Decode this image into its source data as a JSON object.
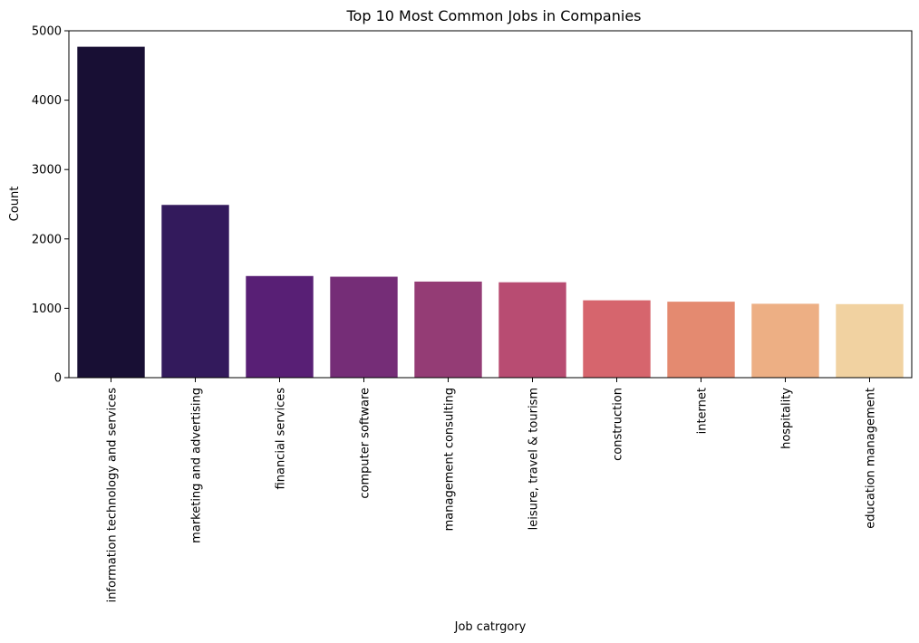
{
  "chart_data": {
    "type": "bar",
    "title": "Top 10 Most Common Jobs in Companies",
    "xlabel": "Job catrgory",
    "ylabel": "Count",
    "ylim": [
      0,
      5000
    ],
    "yticks": [
      0,
      1000,
      2000,
      3000,
      4000,
      5000
    ],
    "grid": false,
    "legend": "none",
    "categories": [
      "information technology and services",
      "marketing and advertising",
      "financial services",
      "computer software",
      "management consulting",
      "leisure, travel & tourism",
      "construction",
      "internet",
      "hospitality",
      "education management"
    ],
    "values": [
      4770,
      2490,
      1465,
      1455,
      1385,
      1375,
      1115,
      1095,
      1065,
      1060
    ],
    "colors": [
      "#180f34",
      "#331a5c",
      "#581f75",
      "#752d77",
      "#943c75",
      "#b84c72",
      "#d6656d",
      "#e48a70",
      "#edaf84",
      "#f1d2a1"
    ]
  }
}
